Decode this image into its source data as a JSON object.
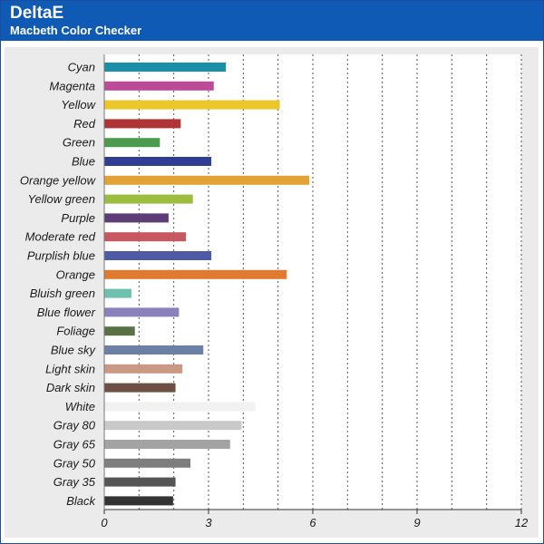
{
  "header": {
    "title": "DeltaE",
    "subtitle": "Macbeth Color Checker"
  },
  "chart_data": {
    "type": "bar",
    "orientation": "horizontal",
    "xlim": [
      0,
      12
    ],
    "xticks": [
      0,
      3,
      6,
      9,
      12
    ],
    "grid": "vertical dotted lines at every 1 unit",
    "categories": [
      "Cyan",
      "Magenta",
      "Yellow",
      "Red",
      "Green",
      "Blue",
      "Orange yellow",
      "Yellow green",
      "Purple",
      "Moderate red",
      "Purplish blue",
      "Orange",
      "Bluish green",
      "Blue flower",
      "Foliage",
      "Blue sky",
      "Light skin",
      "Dark skin",
      "White",
      "Gray 80",
      "Gray 65",
      "Gray 50",
      "Gray 35",
      "Black"
    ],
    "values": [
      3.5,
      3.15,
      5.05,
      2.2,
      1.6,
      3.08,
      5.9,
      2.55,
      1.85,
      2.35,
      3.08,
      5.25,
      0.78,
      2.15,
      0.88,
      2.85,
      2.25,
      2.05,
      4.35,
      3.95,
      3.62,
      2.48,
      2.05,
      1.98
    ],
    "colors": [
      "#1a90a8",
      "#bb4a97",
      "#ecc72a",
      "#b03435",
      "#4b9a4e",
      "#2f3e93",
      "#e3a236",
      "#9cbd3f",
      "#5d3c78",
      "#c75862",
      "#4f5aa7",
      "#e07a2f",
      "#6dc1ae",
      "#8a80bb",
      "#587245",
      "#6b80a7",
      "#c99986",
      "#6d4f43",
      "#f2f2f2",
      "#c9c9c9",
      "#a3a3a3",
      "#7e7e7e",
      "#555555",
      "#333333"
    ]
  }
}
